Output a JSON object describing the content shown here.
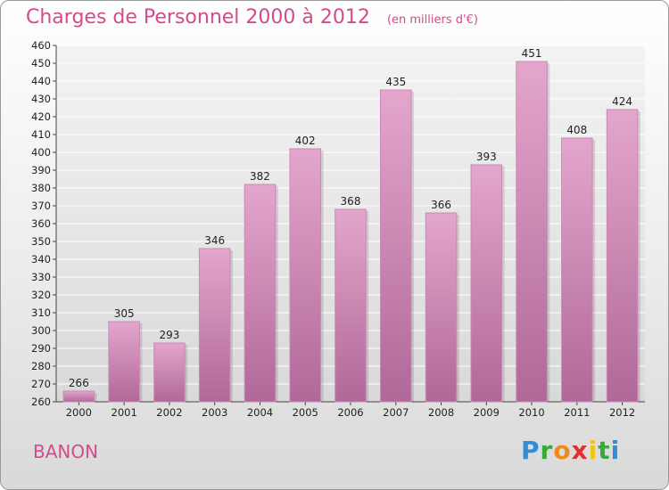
{
  "header": {
    "title": "Charges de Personnel 2000 à 2012",
    "subtitle": "(en milliers d'€)"
  },
  "footer": {
    "commune": "BANON",
    "logo_letters": [
      {
        "char": "P",
        "color": "#2e8fd6"
      },
      {
        "char": "r",
        "color": "#3aa83a"
      },
      {
        "char": "o",
        "color": "#f08a1c"
      },
      {
        "char": "x",
        "color": "#e0312f"
      },
      {
        "char": "i",
        "color": "#f0c419"
      },
      {
        "char": "t",
        "color": "#3aa83a"
      },
      {
        "char": "i",
        "color": "#2e8fd6"
      }
    ]
  },
  "colors": {
    "title": "#d44a8c",
    "bar_top": "#e4a6cc",
    "bar_bottom": "#b06898",
    "grid": "#ffffff"
  },
  "chart_data": {
    "type": "bar",
    "title": "Charges de Personnel 2000 à 2012",
    "subtitle": "(en milliers d'€)",
    "xlabel": "",
    "ylabel": "",
    "categories": [
      "2000",
      "2001",
      "2002",
      "2003",
      "2004",
      "2005",
      "2006",
      "2007",
      "2008",
      "2009",
      "2010",
      "2011",
      "2012"
    ],
    "values": [
      266,
      305,
      293,
      346,
      382,
      402,
      368,
      435,
      366,
      393,
      451,
      408,
      424
    ],
    "ylim": [
      260,
      460
    ],
    "yticks": [
      260,
      270,
      280,
      290,
      300,
      310,
      320,
      330,
      340,
      350,
      360,
      370,
      380,
      390,
      400,
      410,
      420,
      430,
      440,
      450,
      460
    ],
    "grid": true,
    "legend": "none"
  }
}
